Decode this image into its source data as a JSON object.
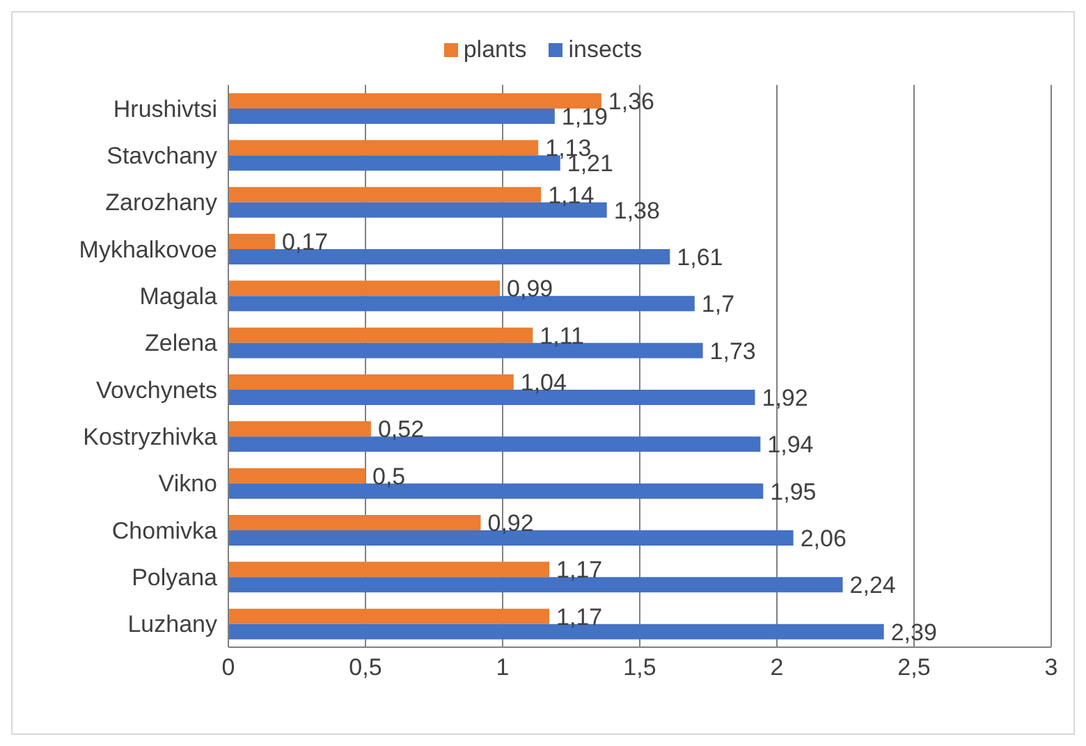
{
  "chart_data": {
    "type": "bar",
    "orientation": "horizontal",
    "categories": [
      "Hrushivtsi",
      "Stavchany",
      "Zarozhany",
      "Mykhalkovoe",
      "Magala",
      "Zelena",
      "Vovchynets",
      "Kostryzhivka",
      "Vikno",
      "Chomivka",
      "Polyana",
      "Luzhany"
    ],
    "series": [
      {
        "name": "plants",
        "color": "#ed7d31",
        "values": [
          1.36,
          1.13,
          1.14,
          0.17,
          0.99,
          1.11,
          1.04,
          0.52,
          0.5,
          0.92,
          1.17,
          1.17
        ],
        "value_labels": [
          "1,36",
          "1,13",
          "1,14",
          "0,17",
          "0,99",
          "1,11",
          "1,04",
          "0,52",
          "0,5",
          "0,92",
          "1,17",
          "1,17"
        ]
      },
      {
        "name": "insects",
        "color": "#4472c4",
        "values": [
          1.19,
          1.21,
          1.38,
          1.61,
          1.7,
          1.73,
          1.92,
          1.94,
          1.95,
          2.06,
          2.24,
          2.39
        ],
        "value_labels": [
          "1,19",
          "1,21",
          "1,38",
          "1,61",
          "1,7",
          "1,73",
          "1,92",
          "1,94",
          "1,95",
          "2,06",
          "2,24",
          "2,39"
        ]
      }
    ],
    "xlim": [
      0,
      3
    ],
    "xticks": [
      0,
      {
        "value": 0.5,
        "label": "0,5"
      },
      1,
      {
        "value": 1.5,
        "label": "1,5"
      },
      2,
      {
        "value": 2.5,
        "label": "2,5"
      },
      3
    ],
    "grid": "x",
    "legend": "top"
  }
}
